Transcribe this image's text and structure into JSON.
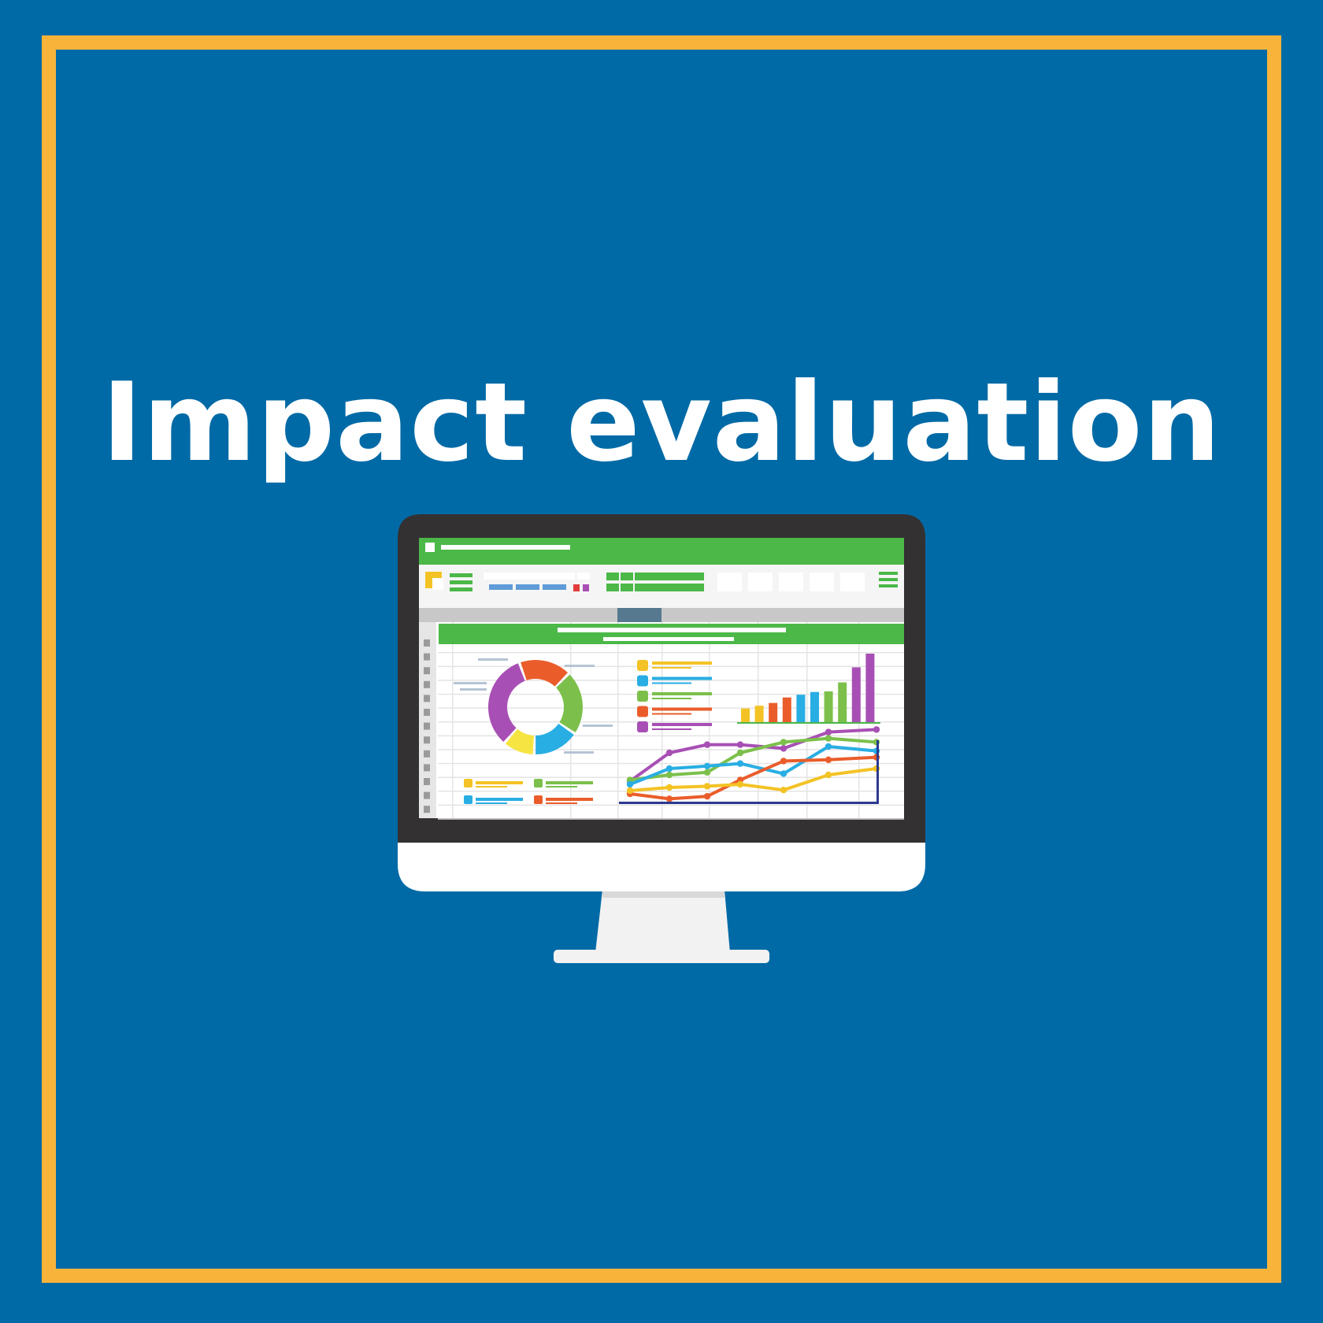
{
  "page": {
    "title": "Impact evaluation"
  },
  "colors": {
    "background": "#006aa6",
    "border": "#f8b33a",
    "title_text": "#ffffff",
    "spreadsheet_green": "#4bb848",
    "bezel": "#333132",
    "stand": "#f2f2f2"
  },
  "illustration": {
    "subject": "desktop monitor showing a spreadsheet dashboard",
    "icon": "monitor-icon",
    "donut_segments": [
      {
        "color": "#ea5d2b",
        "share": 0.18
      },
      {
        "color": "#7cc04b",
        "share": 0.22
      },
      {
        "color": "#29aee3",
        "share": 0.16
      },
      {
        "color": "#f6e443",
        "share": 0.11
      },
      {
        "color": "#a84fb5",
        "share": 0.33
      }
    ],
    "bar_colors": [
      "#f3c325",
      "#f3c325",
      "#ea5d2b",
      "#ea5d2b",
      "#29aee3",
      "#29aee3",
      "#7cc04b",
      "#7cc04b",
      "#a84fb5",
      "#a84fb5"
    ],
    "bar_levels": [
      0.2,
      0.24,
      0.28,
      0.36,
      0.4,
      0.44,
      0.45,
      0.58,
      0.8,
      1.0
    ],
    "legend_colors": [
      "#f3c325",
      "#29aee3",
      "#7cc04b",
      "#ea5d2b",
      "#a84fb5"
    ],
    "line_series": [
      {
        "color": "#a84fb5",
        "levels": [
          0.1,
          0.55,
          0.68,
          0.68,
          0.62,
          0.88,
          0.92
        ]
      },
      {
        "color": "#7cc04b",
        "levels": [
          0.12,
          0.2,
          0.24,
          0.55,
          0.72,
          0.78,
          0.72
        ]
      },
      {
        "color": "#29aee3",
        "levels": [
          0.05,
          0.3,
          0.34,
          0.38,
          0.22,
          0.65,
          0.58
        ]
      },
      {
        "color": "#ea5d2b",
        "levels": [
          -0.1,
          -0.18,
          -0.14,
          0.12,
          0.42,
          0.44,
          0.48
        ]
      },
      {
        "color": "#f3c325",
        "levels": [
          -0.05,
          0.0,
          0.02,
          0.05,
          -0.04,
          0.2,
          0.3
        ]
      }
    ]
  }
}
